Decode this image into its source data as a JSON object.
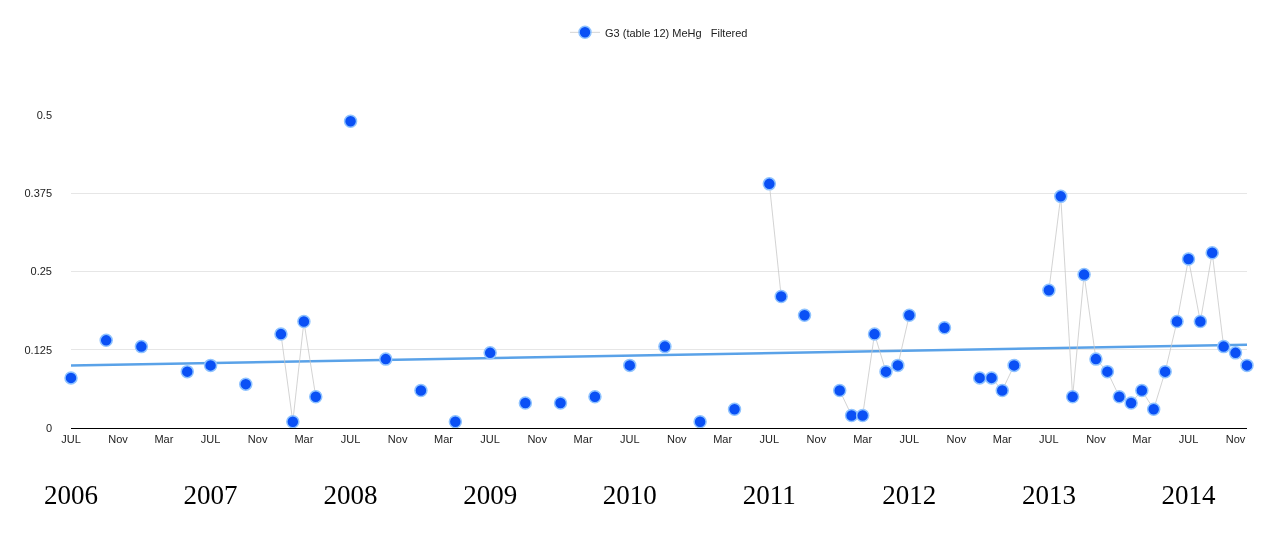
{
  "chart_data": {
    "type": "line",
    "marker": "circle",
    "grid": "y",
    "legend": "top",
    "ylim": [
      0,
      0.5
    ],
    "yticks": [
      0,
      0.125,
      0.25,
      0.375,
      0.5
    ],
    "xlim": [
      "2006-07",
      "2014-12"
    ],
    "xticks": [
      {
        "value": "2006-07",
        "label": "JUL"
      },
      {
        "value": "2006-11",
        "label": "Nov"
      },
      {
        "value": "2007-03",
        "label": "Mar"
      },
      {
        "value": "2007-07",
        "label": "JUL"
      },
      {
        "value": "2007-11",
        "label": "Nov"
      },
      {
        "value": "2008-03",
        "label": "Mar"
      },
      {
        "value": "2008-07",
        "label": "JUL"
      },
      {
        "value": "2008-11",
        "label": "Nov"
      },
      {
        "value": "2009-03",
        "label": "Mar"
      },
      {
        "value": "2009-07",
        "label": "JUL"
      },
      {
        "value": "2009-11",
        "label": "Nov"
      },
      {
        "value": "2010-03",
        "label": "Mar"
      },
      {
        "value": "2010-07",
        "label": "JUL"
      },
      {
        "value": "2010-11",
        "label": "Nov"
      },
      {
        "value": "2011-03",
        "label": "Mar"
      },
      {
        "value": "2011-07",
        "label": "JUL"
      },
      {
        "value": "2011-11",
        "label": "Nov"
      },
      {
        "value": "2012-03",
        "label": "Mar"
      },
      {
        "value": "2012-07",
        "label": "JUL"
      },
      {
        "value": "2012-11",
        "label": "Nov"
      },
      {
        "value": "2013-03",
        "label": "Mar"
      },
      {
        "value": "2013-07",
        "label": "JUL"
      },
      {
        "value": "2013-11",
        "label": "Nov"
      },
      {
        "value": "2014-03",
        "label": "Mar"
      },
      {
        "value": "2014-07",
        "label": "JUL"
      },
      {
        "value": "2014-11",
        "label": "Nov"
      }
    ],
    "x2lim": [
      "2006-07",
      "2014-12"
    ],
    "x2ticks": [
      {
        "value": "2006-07",
        "label": "2006"
      },
      {
        "value": "2007-07",
        "label": "2007"
      },
      {
        "value": "2008-07",
        "label": "2008"
      },
      {
        "value": "2009-07",
        "label": "2009"
      },
      {
        "value": "2010-07",
        "label": "2010"
      },
      {
        "value": "2011-07",
        "label": "2011"
      },
      {
        "value": "2012-07",
        "label": "2012"
      },
      {
        "value": "2013-07",
        "label": "2013"
      },
      {
        "value": "2014-07",
        "label": "2014"
      }
    ],
    "series": [
      {
        "name": "G3 (table 12) MeHg   Filtered",
        "color": "#0a50f5",
        "x": [
          "2006-07",
          "2006-08",
          "2006-10",
          "2006-11",
          "2007-01",
          "2007-02",
          "2007-05",
          "2007-06",
          "2007-07",
          "2007-08",
          "2007-10",
          "2007-11",
          "2008-01",
          "2008-02",
          "2008-03",
          "2008-04",
          "2008-05",
          "2008-07",
          "2008-08",
          "2008-10",
          "2008-11",
          "2009-01",
          "2009-02",
          "2009-04",
          "2009-05",
          "2009-07",
          "2009-08",
          "2009-10",
          "2009-11",
          "2010-01",
          "2010-02",
          "2010-04",
          "2010-05",
          "2010-07",
          "2010-08",
          "2010-10",
          "2010-11",
          "2011-01",
          "2011-02",
          "2011-04",
          "2011-05",
          "2011-07",
          "2011-08",
          "2011-09",
          "2011-10",
          "2011-11",
          "2012-01",
          "2012-02",
          "2012-03",
          "2012-04",
          "2012-05",
          "2012-06",
          "2012-07",
          "2012-08",
          "2012-10",
          "2012-11",
          "2013-01",
          "2013-02",
          "2013-03",
          "2013-04",
          "2013-05",
          "2013-07",
          "2013-08",
          "2013-09",
          "2013-10",
          "2013-11",
          "2013-12",
          "2014-01",
          "2014-02",
          "2014-03",
          "2014-04",
          "2014-05",
          "2014-06",
          "2014-07",
          "2014-08",
          "2014-09",
          "2014-10",
          "2014-11",
          "2014-12"
        ],
        "values": [
          0.08,
          null,
          0.14,
          null,
          0.13,
          null,
          0.09,
          null,
          0.1,
          null,
          0.07,
          null,
          0.15,
          0.01,
          0.17,
          0.05,
          null,
          0.49,
          null,
          0.11,
          null,
          0.06,
          null,
          0.01,
          null,
          0.12,
          null,
          0.04,
          null,
          0.04,
          null,
          0.05,
          null,
          0.1,
          null,
          0.13,
          null,
          0.01,
          null,
          0.03,
          null,
          0.39,
          0.21,
          null,
          0.18,
          null,
          0.06,
          0.02,
          0.02,
          0.15,
          0.09,
          0.1,
          0.18,
          null,
          0.16,
          null,
          0.08,
          0.08,
          0.06,
          0.1,
          null,
          0.22,
          0.37,
          0.05,
          0.245,
          0.11,
          0.09,
          0.05,
          0.04,
          0.06,
          0.03,
          0.09,
          0.17,
          0.27,
          0.17,
          0.28,
          0.13,
          0.12,
          0.1
        ]
      },
      {
        "type": "line",
        "marker": "none",
        "color": "#5aa2e8",
        "x": [
          "2006-07",
          "2014-12"
        ],
        "values": [
          0.1,
          0.133
        ]
      }
    ]
  }
}
